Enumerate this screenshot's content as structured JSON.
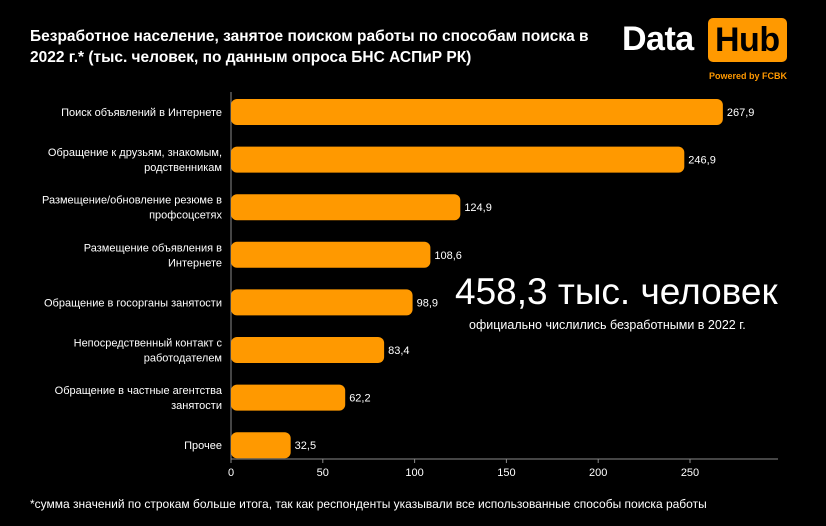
{
  "title": "Безработное население, занятое поиском работы по способам поиска в 2022 г.* (тыс. человек, по данным опроса БНС АСПиР РК)",
  "logo": {
    "word_left": "Data",
    "word_right": "Hub",
    "tagline": "Powered by FCBK",
    "accent_color": "#ff9900"
  },
  "highlight": {
    "value": "458,3 тыс. человек",
    "caption": "официально числились безработными в 2022 г."
  },
  "footnote": "*сумма значений по строкам больше итога, так как респонденты указывали все использованные способы поиска работы",
  "chart_data": {
    "type": "bar",
    "orientation": "horizontal",
    "categories": [
      [
        "Поиск объявлений в Интернете"
      ],
      [
        "Обращение к друзьям, знакомым,",
        "родственникам"
      ],
      [
        "Размещение/обновление резюме в",
        "профсоцсетях"
      ],
      [
        "Размещение объявления в",
        "Интернете"
      ],
      [
        "Обращение в госорганы занятости"
      ],
      [
        "Непосредственный контакт с",
        "работодателем"
      ],
      [
        "Обращение в частные агентства",
        "занятости"
      ],
      [
        "Прочее"
      ]
    ],
    "values": [
      267.9,
      246.9,
      124.9,
      108.6,
      98.9,
      83.4,
      62.2,
      32.5
    ],
    "value_labels": [
      "267,9",
      "246,9",
      "124,9",
      "108,6",
      "98,9",
      "83,4",
      "62,2",
      "32,5"
    ],
    "xlim": [
      0,
      295
    ],
    "xticks": [
      0,
      50,
      100,
      150,
      200,
      250
    ],
    "bar_color": "#ff9900",
    "grid": false,
    "legend": "none"
  }
}
